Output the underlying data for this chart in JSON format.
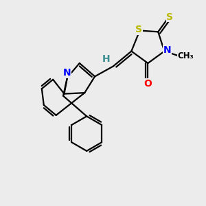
{
  "background_color": "#ececec",
  "atom_colors": {
    "S": "#b8b800",
    "N": "#0000ff",
    "O": "#ff0000",
    "C": "#000000",
    "H": "#3a9090"
  },
  "bond_color": "#000000",
  "bond_width": 1.6,
  "figsize": [
    3.0,
    3.0
  ],
  "dpi": 100,
  "xlim": [
    0.0,
    10.0
  ],
  "ylim": [
    0.0,
    10.0
  ]
}
